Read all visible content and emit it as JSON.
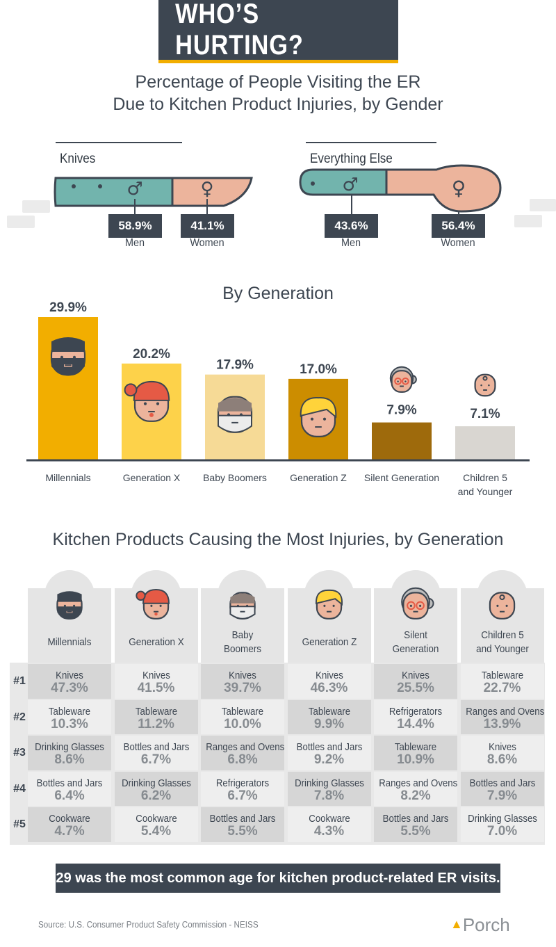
{
  "header": {
    "title": "WHO’S HURTING?",
    "subtitle_line1": "Percentage of People Visiting the ER",
    "subtitle_line2": "Due to Kitchen Product Injuries, by Gender"
  },
  "gender": {
    "knives": {
      "label": "Knives",
      "men_pct": "58.9%",
      "men_label": "Men",
      "women_pct": "41.1%",
      "women_label": "Women"
    },
    "everything_else": {
      "label": "Everything Else",
      "men_pct": "43.6%",
      "men_label": "Men",
      "women_pct": "56.4%",
      "women_label": "Women"
    },
    "male_symbol": "♂",
    "female_symbol": "♀",
    "colors": {
      "men": "#72b4ad",
      "women": "#ecb49c",
      "outline": "#3d4651"
    }
  },
  "chart_data": {
    "type": "bar",
    "title": "By Generation",
    "categories": [
      "Millennials",
      "Generation X",
      "Baby Boomers",
      "Generation Z",
      "Silent Generation",
      "Children 5 and Younger"
    ],
    "category_lines": [
      [
        "Millennials"
      ],
      [
        "Generation X"
      ],
      [
        "Baby Boomers"
      ],
      [
        "Generation Z"
      ],
      [
        "Silent Generation"
      ],
      [
        "Children 5",
        "and Younger"
      ]
    ],
    "values": [
      29.9,
      20.2,
      17.9,
      17.0,
      7.9,
      7.1
    ],
    "value_labels": [
      "29.9%",
      "20.2%",
      "17.9%",
      "17.0%",
      "7.9%",
      "7.1%"
    ],
    "colors": [
      "#f2ae00",
      "#fdd24a",
      "#f6da96",
      "#cc8d00",
      "#9e6a0c",
      "#d9d6d1"
    ],
    "ylim": [
      0,
      29.9
    ],
    "grid": false,
    "legend": "none"
  },
  "table": {
    "title": "Kitchen Products Causing the Most Injuries, by Generation",
    "columns": [
      [
        "Millennials"
      ],
      [
        "Generation X"
      ],
      [
        "Baby",
        "Boomers"
      ],
      [
        "Generation Z"
      ],
      [
        "Silent",
        "Generation"
      ],
      [
        "Children 5",
        "and Younger"
      ]
    ],
    "ranks": [
      "#1",
      "#2",
      "#3",
      "#4",
      "#5"
    ],
    "rows": [
      [
        [
          "Knives",
          "47.3%"
        ],
        [
          "Knives",
          "41.5%"
        ],
        [
          "Knives",
          "39.7%"
        ],
        [
          "Knives",
          "46.3%"
        ],
        [
          "Knives",
          "25.5%"
        ],
        [
          "Tableware",
          "22.7%"
        ]
      ],
      [
        [
          "Tableware",
          "10.3%"
        ],
        [
          "Tableware",
          "11.2%"
        ],
        [
          "Tableware",
          "10.0%"
        ],
        [
          "Tableware",
          "9.9%"
        ],
        [
          "Refrigerators",
          "14.4%"
        ],
        [
          "Ranges and Ovens",
          "13.9%"
        ]
      ],
      [
        [
          "Drinking Glasses",
          "8.6%"
        ],
        [
          "Bottles and Jars",
          "6.7%"
        ],
        [
          "Ranges and Ovens",
          "6.8%"
        ],
        [
          "Bottles and Jars",
          "9.2%"
        ],
        [
          "Tableware",
          "10.9%"
        ],
        [
          "Knives",
          "8.6%"
        ]
      ],
      [
        [
          "Bottles and Jars",
          "6.4%"
        ],
        [
          "Drinking Glasses",
          "6.2%"
        ],
        [
          "Refrigerators",
          "6.7%"
        ],
        [
          "Drinking Glasses",
          "7.8%"
        ],
        [
          "Ranges and Ovens",
          "8.2%"
        ],
        [
          "Bottles and Jars",
          "7.9%"
        ]
      ],
      [
        [
          "Cookware",
          "4.7%"
        ],
        [
          "Cookware",
          "5.4%"
        ],
        [
          "Bottles and Jars",
          "5.5%"
        ],
        [
          "Cookware",
          "4.3%"
        ],
        [
          "Bottles and Jars",
          "5.5%"
        ],
        [
          "Drinking Glasses",
          "7.0%"
        ]
      ]
    ]
  },
  "footer": {
    "banner": "29 was the most common age for kitchen product-related ER visits.",
    "source": "Source: U.S. Consumer Product Safety Commission - NEISS",
    "brand": "Porch"
  }
}
